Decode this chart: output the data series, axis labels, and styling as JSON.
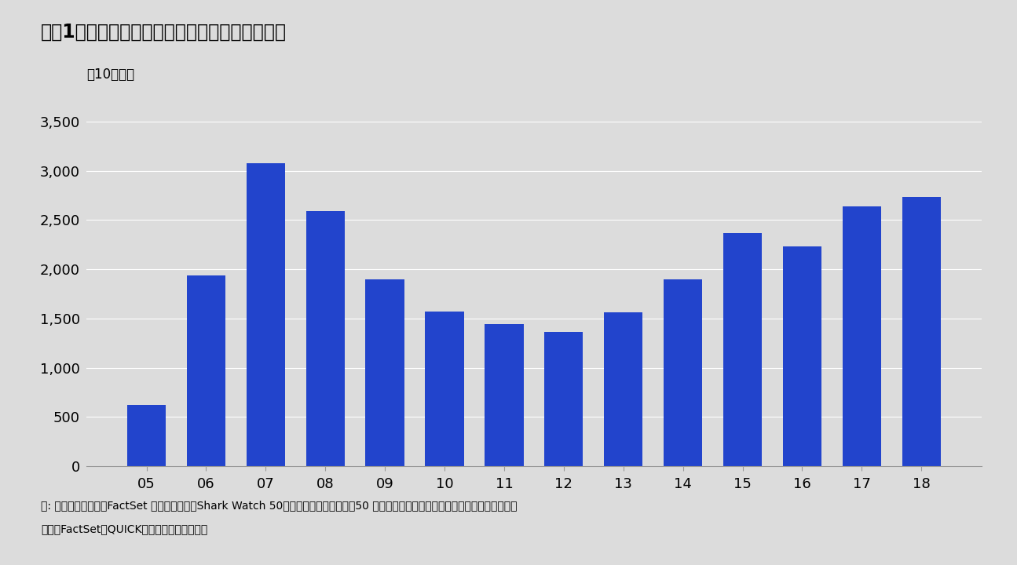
{
  "title": "図表1：アクティビストの日本株保有金額の推移",
  "ylabel": "（10億円）",
  "categories": [
    "05",
    "06",
    "07",
    "08",
    "09",
    "10",
    "11",
    "12",
    "13",
    "14",
    "15",
    "16",
    "17",
    "18"
  ],
  "values": [
    620,
    1940,
    3080,
    2590,
    1900,
    1570,
    1440,
    1360,
    1560,
    1900,
    2370,
    2230,
    2640,
    2730
  ],
  "bar_color": "#2244CC",
  "background_color": "#DCDCDC",
  "plot_bg_color": "#DCDCDC",
  "ylim": [
    0,
    3500
  ],
  "yticks": [
    0,
    500,
    1000,
    1500,
    2000,
    2500,
    3000,
    3500
  ],
  "ytick_labels": [
    "0",
    "500",
    "1,000",
    "1,500",
    "2,000",
    "2,500",
    "3,000",
    "3,500"
  ],
  "title_fontsize": 17,
  "tick_fontsize": 13,
  "ylabel_fontsize": 12,
  "note_fontsize": 10,
  "note_line1": "注: アクティビストはFactSet が公表しているShark Watch 50（世界のアクティビスト50 社）に日本固有のアクティビストを加えて構成。",
  "note_line2": "出所：FactSet、QUICK、ＳＭＢＣ日興証券。"
}
